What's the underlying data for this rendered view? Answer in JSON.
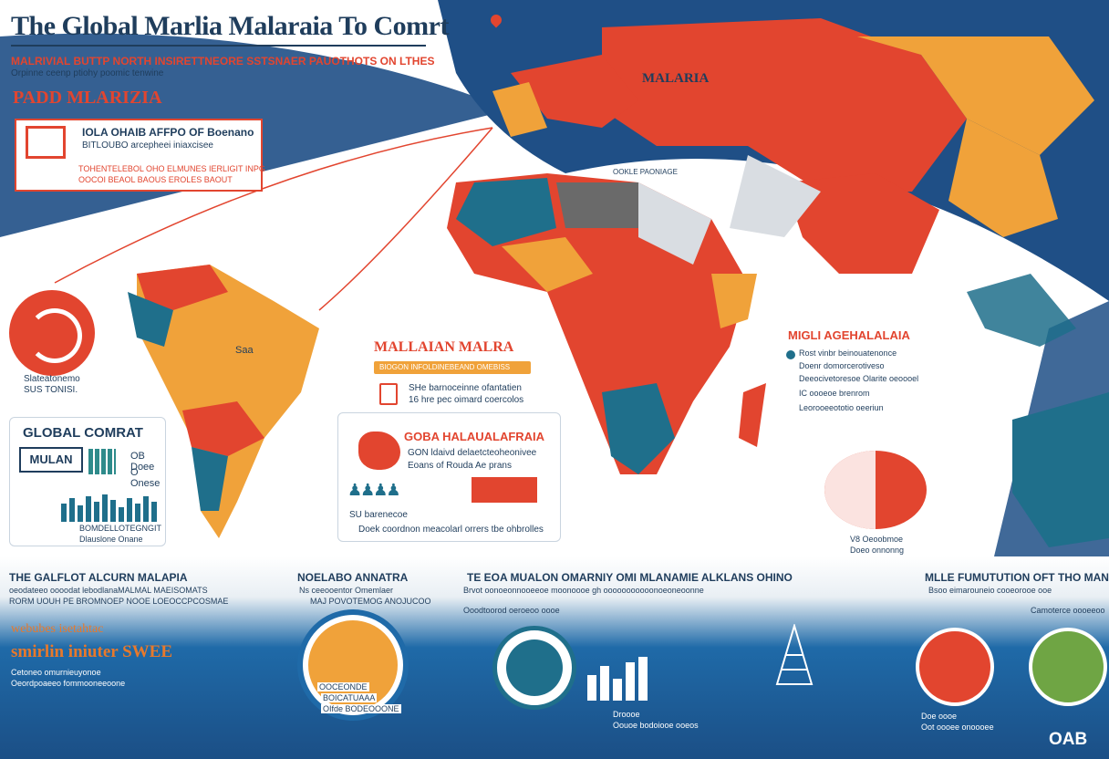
{
  "header": {
    "title": "The Global Marlia  Malaraia To Comrt",
    "subtitle": "MALRIVIAL BUTTP NORTH INSIRETTNEORE SSTSNAER PAUOTHOTS ON LTHES",
    "subtitle2": "Orpinne ceenp ptiohy poomic tenwine",
    "section_label": "PADD MLARIZIA"
  },
  "red_card": {
    "title": "IOLA OHAIB AFFPO OF Boenano",
    "subtitle": "BITLOUBO arcepheei iniaxcisee",
    "foot1": "TOHENTELEBOL OHO  ELMUNES IERLIGIT INPG",
    "foot2": "OOCOI BEAOL BAOUS  EROLES BAOUT"
  },
  "circle_left": {
    "caption1": "Slateatonemo",
    "caption2": "SUS TONISI."
  },
  "panel_left": {
    "title": "GLOBAL COMRAT",
    "big": "MULAN",
    "v1": "OB Doee",
    "v2": "O Onese",
    "foot1": "BOMDELLOTEGNGIT",
    "foot2": "Dlauslone Onane"
  },
  "map_labels": {
    "asia": "MALARIA",
    "samerica": "Saa",
    "med": "OOKLE PAONIAGE"
  },
  "mid": {
    "label": "MALLAIAN  MALRA",
    "bar": "BIOGON INFOLDINEBEAND OMEBISS",
    "line1": "SHe barnoceinne ofantatien",
    "line2": "16 hre pec oimard coercolos"
  },
  "panel_mid": {
    "title": "GOBA HALAUALAFRAIA",
    "sub1": "GON ldaivd delaetcteoheonivee",
    "sub2": "Eoans of Rouda Ae prans",
    "foot1": "SU barenecoe",
    "foot2": "Doek coordnon meacolarl orrers tbe ohbrolles"
  },
  "right_card": {
    "title": "MIGLI AGEHALALAIA",
    "lines": [
      "Rost vinbr beinouatenonce",
      "Doenr domorcerotiveso",
      "Deeocivetoresoe Olarite oeoooel",
      "IC oooeoe brenrom",
      "Leorooeeototio oeeriun"
    ],
    "caption1": "V8 Oeoobmoe",
    "caption2": "Doeo onnonng"
  },
  "bottom": {
    "col1_title": "THE GALFLOT ALCURN MALAPIA",
    "col1_sub": "oeodateeo oooodat lebodlanaMALMAL MAEISOMATS",
    "col1_sub2": "RORM UOUH PE BROMNOEP NOOE LOEOCCPCOSMAE",
    "col1_orange1": "webubes isetahtac",
    "col1_orange2": "smirlin iniuter SWEE",
    "col1_foot1": "Cetoneo omurnieuyonoe",
    "col1_foot2": "Oeordpoaeeo fommooneeoone",
    "col2_title": "NOELABO ANNATRA",
    "col2_sub": "Ns ceeooentor Omemlaer",
    "col2_sub2": "MAJ POVOTEMOG ANOJUCOO",
    "col2_label1": "OOCEONDE",
    "col2_label2": "BOICATUAAA",
    "col2_label3": "OIfde BODEOOONE",
    "col3_title": "TE EOA MUALON OMARNIY OMI MLANAMIE ALKLANS OHINO",
    "col3_sub": "Brvot oonoeonnooeeoe moonoooe gh ooooooooooonoeoneoonne",
    "col3_sub2": "Ooodtoorod oeroeoo oooe",
    "col3_foot1": "Droooe",
    "col3_foot2": "Oouoe bodoiooe ooeos",
    "col4_title": "MLLE FUMUTUTION OFT THO MANBLIK",
    "col4_sub": "Bsoo eimarouneio cooeorooe ooe",
    "col4_sub2": "Camoterce oooeeoo",
    "col4_foot1": "Doe oooe",
    "col4_foot2": "Oot oooee onoooee",
    "logo": "OAB"
  },
  "colors": {
    "red": "#e2452f",
    "orange": "#f0a23a",
    "teal": "#1f6f8b",
    "navy": "#1f3d5c",
    "blue": "#1f6aa8"
  }
}
